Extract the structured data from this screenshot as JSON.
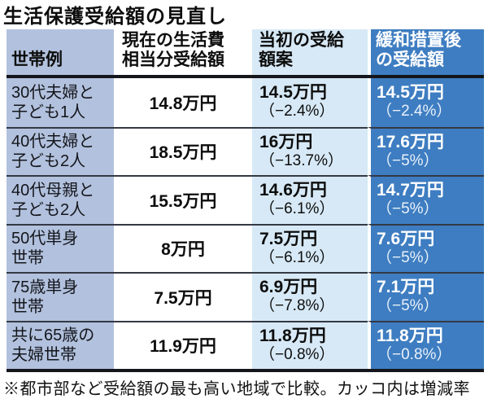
{
  "title": "生活保護受給額の見直し",
  "footnote": "※都市部など受給額の最も高い地域で比較。カッコ内は増減率",
  "colors": {
    "household_col_bg": "#b2c1dd",
    "current_col_bg": "#ffffff",
    "initial_col_bg": "#d7e9f6",
    "mitigated_col_bg": "#3e7dc1",
    "mitigated_col_text": "#ffffff",
    "rule": "#14161c",
    "row_divider": "#343944"
  },
  "table": {
    "headers": {
      "household": "世帯例",
      "current": [
        "現在の生活費",
        "相当分受給額"
      ],
      "initial": [
        "当初の受給",
        "額案"
      ],
      "after": [
        "緩和措置後",
        "の受給額"
      ]
    },
    "rows": [
      {
        "household": [
          "30代夫婦と",
          "子ども1人"
        ],
        "current": "14.8万円",
        "initial_value": "14.5万円",
        "initial_pct": "（−2.4%）",
        "after_value": "14.5万円",
        "after_pct": "（−2.4%）"
      },
      {
        "household": [
          "40代夫婦と",
          "子ども2人"
        ],
        "current": "18.5万円",
        "initial_value": "16万円",
        "initial_pct": "（−13.7%）",
        "after_value": "17.6万円",
        "after_pct": "（−5%）"
      },
      {
        "household": [
          "40代母親と",
          "子ども2人"
        ],
        "current": "15.5万円",
        "initial_value": "14.6万円",
        "initial_pct": "（−6.1%）",
        "after_value": "14.7万円",
        "after_pct": "（−5%）"
      },
      {
        "household": [
          "50代単身",
          "世帯"
        ],
        "current": "8万円",
        "initial_value": "7.5万円",
        "initial_pct": "（−6.1%）",
        "after_value": "7.6万円",
        "after_pct": "（−5%）"
      },
      {
        "household": [
          "75歳単身",
          "世帯"
        ],
        "current": "7.5万円",
        "initial_value": "6.9万円",
        "initial_pct": "（−7.8%）",
        "after_value": "7.1万円",
        "after_pct": "（−5%）"
      },
      {
        "household": [
          "共に65歳の",
          "夫婦世帯"
        ],
        "current": "11.9万円",
        "initial_value": "11.8万円",
        "initial_pct": "（−0.8%）",
        "after_value": "11.8万円",
        "after_pct": "（−0.8%）"
      }
    ]
  },
  "chart_data": {
    "type": "table",
    "title": "生活保護受給額の見直し",
    "unit": "万円",
    "columns": [
      "世帯例",
      "現在の生活費相当分受給額",
      "当初の受給額案",
      "緩和措置後の受給額"
    ],
    "categories": [
      "30代夫婦と子ども1人",
      "40代夫婦と子ども2人",
      "40代母親と子ども2人",
      "50代単身世帯",
      "75歳単身世帯",
      "共に65歳の夫婦世帯"
    ],
    "series": [
      {
        "name": "現在の生活費相当分受給額",
        "values": [
          14.8,
          18.5,
          15.5,
          8,
          7.5,
          11.9
        ]
      },
      {
        "name": "当初の受給額案",
        "values": [
          14.5,
          16,
          14.6,
          7.5,
          6.9,
          11.8
        ],
        "change_pct": [
          -2.4,
          -13.7,
          -6.1,
          -6.1,
          -7.8,
          -0.8
        ]
      },
      {
        "name": "緩和措置後の受給額",
        "values": [
          14.5,
          17.6,
          14.7,
          7.6,
          7.1,
          11.8
        ],
        "change_pct": [
          -2.4,
          -5,
          -5,
          -5,
          -5,
          -0.8
        ]
      }
    ],
    "footnote": "※都市部など受給額の最も高い地域で比較。カッコ内は増減率"
  }
}
